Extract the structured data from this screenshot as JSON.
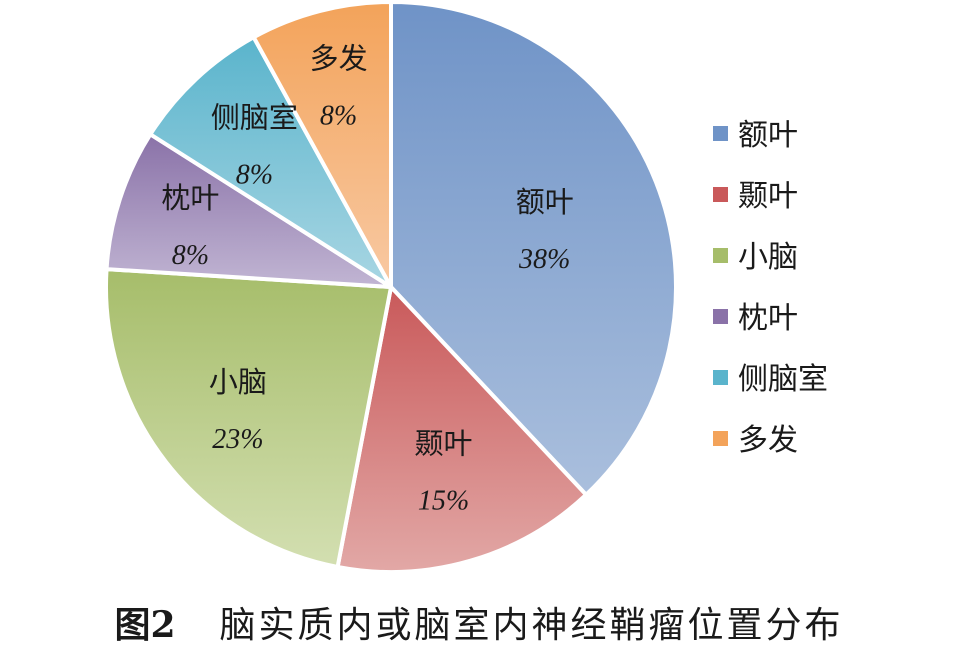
{
  "caption": {
    "figure_number": "图2",
    "title": "脑实质内或脑室内神经鞘瘤位置分布"
  },
  "chart_data": {
    "type": "pie",
    "title": "",
    "legend_position": "right",
    "slices": [
      {
        "label": "额叶",
        "value": 38,
        "value_label": "38%",
        "color_top": "#6f93c7",
        "color_bottom": "#aabfdd"
      },
      {
        "label": "颞叶",
        "value": 15,
        "value_label": "15%",
        "color_top": "#c9595a",
        "color_bottom": "#e2a8a6"
      },
      {
        "label": "小脑",
        "value": 23,
        "value_label": "23%",
        "color_top": "#a6bd6a",
        "color_bottom": "#d3dfb1"
      },
      {
        "label": "枕叶",
        "value": 8,
        "value_label": "8%",
        "color_top": "#8a72a8",
        "color_bottom": "#c1b5d3"
      },
      {
        "label": "侧脑室",
        "value": 8,
        "value_label": "8%",
        "color_top": "#5ab4cc",
        "color_bottom": "#a8d6e3"
      },
      {
        "label": "多发",
        "value": 8,
        "value_label": "8%",
        "color_top": "#f3a35a",
        "color_bottom": "#f8c9a3"
      }
    ]
  }
}
